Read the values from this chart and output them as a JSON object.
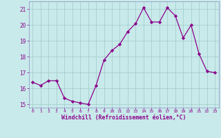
{
  "x": [
    0,
    1,
    2,
    3,
    4,
    5,
    6,
    7,
    8,
    9,
    10,
    11,
    12,
    13,
    14,
    15,
    16,
    17,
    18,
    19,
    20,
    21,
    22,
    23
  ],
  "y": [
    16.4,
    16.2,
    16.5,
    16.5,
    15.4,
    15.2,
    15.1,
    15.0,
    16.2,
    17.8,
    18.4,
    18.8,
    19.6,
    20.1,
    21.1,
    20.2,
    20.2,
    21.1,
    20.6,
    19.2,
    20.0,
    18.2,
    17.1,
    17.0
  ],
  "line_color": "#8B008B",
  "marker": "D",
  "marker_size": 2.2,
  "bg_color": "#c8eaea",
  "grid_color": "#a0c8c8",
  "xlabel": "Windchill (Refroidissement éolien,°C)",
  "xlabel_color": "#8B008B",
  "tick_color": "#8B008B",
  "ylim": [
    14.8,
    21.5
  ],
  "yticks": [
    15,
    16,
    17,
    18,
    19,
    20,
    21
  ],
  "xlim": [
    -0.5,
    23.5
  ],
  "xticks": [
    0,
    1,
    2,
    3,
    4,
    5,
    6,
    7,
    8,
    9,
    10,
    11,
    12,
    13,
    14,
    15,
    16,
    17,
    18,
    19,
    20,
    21,
    22,
    23
  ],
  "title": "",
  "figsize": [
    3.2,
    2.0
  ],
  "dpi": 100
}
